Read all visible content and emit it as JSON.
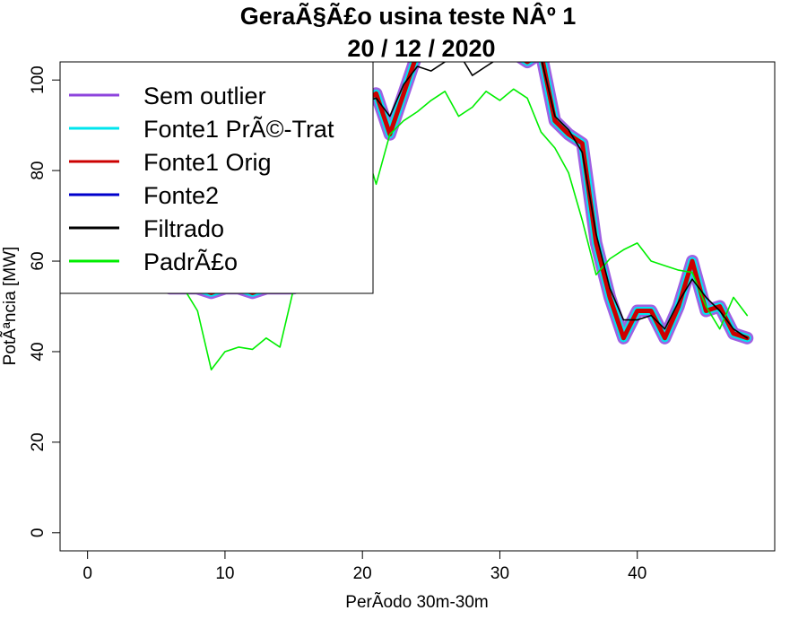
{
  "chart_data": {
    "type": "line",
    "title_line1": "GeraÃ§Ã£o usina teste NÂº 1",
    "title_line2": "20 / 12 / 2020",
    "xlabel": "PerÃ­odo 30m-30m",
    "ylabel": "PotÃªncia [MW]",
    "xlim": [
      -2,
      50
    ],
    "ylim": [
      -4,
      104
    ],
    "xticks": [
      0,
      10,
      20,
      30,
      40
    ],
    "yticks": [
      0,
      20,
      40,
      60,
      80,
      100
    ],
    "legend_position": "top-left",
    "series": [
      {
        "name": "Sem outlier",
        "color": "#8e44dd",
        "x": [
          6,
          7,
          8,
          9,
          10,
          11,
          12,
          13,
          14,
          15,
          16,
          17,
          18,
          19,
          20,
          21,
          22,
          23,
          24,
          25,
          26,
          27,
          28,
          29,
          30,
          31,
          32,
          33,
          34,
          35,
          36,
          37,
          38,
          39,
          40,
          41,
          42,
          43,
          44,
          45,
          46,
          47,
          48
        ],
        "y": [
          54,
          54,
          54,
          53,
          54,
          54,
          53,
          54,
          54,
          54,
          62,
          72,
          80,
          90,
          95,
          97,
          88,
          97,
          106,
          106,
          106,
          106,
          106,
          106,
          106,
          106,
          104,
          106,
          91,
          88,
          86,
          64,
          52,
          43,
          49,
          49,
          43,
          50,
          60,
          49,
          50,
          44,
          43
        ]
      },
      {
        "name": "Fonte1 PrÃ©-Trat",
        "color": "#00e5ee",
        "x": [
          6,
          7,
          8,
          9,
          10,
          11,
          12,
          13,
          14,
          15,
          16,
          17,
          18,
          19,
          20,
          21,
          22,
          23,
          24,
          25,
          26,
          27,
          28,
          29,
          30,
          31,
          32,
          33,
          34,
          35,
          36,
          37,
          38,
          39,
          40,
          41,
          42,
          43,
          44,
          45,
          46,
          47,
          48
        ],
        "y": [
          54,
          54,
          54,
          53,
          54,
          54,
          53,
          54,
          54,
          54,
          62,
          72,
          80,
          90,
          95,
          97,
          88,
          97,
          106,
          106,
          106,
          106,
          106,
          106,
          106,
          106,
          104,
          106,
          91,
          88,
          86,
          64,
          52,
          43,
          49,
          49,
          43,
          50,
          60,
          49,
          50,
          44,
          43
        ]
      },
      {
        "name": "Fonte1 Orig",
        "color": "#cc0000",
        "x": [
          6,
          7,
          8,
          9,
          10,
          11,
          12,
          13,
          14,
          15,
          16,
          17,
          18,
          19,
          20,
          21,
          22,
          23,
          24,
          25,
          26,
          27,
          28,
          29,
          30,
          31,
          32,
          33,
          34,
          35,
          36,
          37,
          38,
          39,
          40,
          41,
          42,
          43,
          44,
          45,
          46,
          47,
          48
        ],
        "y": [
          54,
          54,
          54,
          53,
          54,
          54,
          53,
          54,
          54,
          54,
          62,
          72,
          80,
          90,
          95,
          97,
          88,
          97,
          106,
          106,
          106,
          106,
          106,
          106,
          106,
          106,
          104,
          106,
          91,
          88,
          86,
          64,
          52,
          43,
          49,
          49,
          43,
          50,
          60,
          49,
          50,
          44,
          43
        ]
      },
      {
        "name": "Fonte2",
        "color": "#0000cc",
        "x": [
          6,
          7,
          8,
          9,
          10,
          11,
          12,
          13,
          14,
          15,
          16,
          17,
          18,
          19,
          20,
          21,
          22,
          23,
          24,
          25,
          26,
          27,
          28,
          29,
          30,
          31,
          32,
          33,
          34,
          35,
          36,
          37,
          38,
          39,
          40,
          41,
          42,
          43,
          44,
          45,
          46,
          47,
          48
        ],
        "y": [
          54,
          54,
          54,
          53,
          54,
          54,
          53,
          54,
          54,
          54,
          62,
          72,
          80,
          90,
          95,
          97,
          88,
          97,
          106,
          106,
          106,
          106,
          106,
          106,
          106,
          106,
          104,
          106,
          91,
          88,
          86,
          64,
          52,
          43,
          49,
          49,
          43,
          50,
          60,
          49,
          50,
          44,
          43
        ]
      },
      {
        "name": "Filtrado",
        "color": "#000000",
        "x": [
          6,
          7,
          8,
          9,
          10,
          11,
          12,
          13,
          14,
          15,
          16,
          17,
          18,
          19,
          20,
          21,
          22,
          23,
          24,
          25,
          26,
          27,
          28,
          29,
          30,
          31,
          32,
          33,
          34,
          35,
          36,
          37,
          38,
          39,
          40,
          41,
          42,
          43,
          44,
          45,
          46,
          47,
          48
        ],
        "y": [
          54,
          54,
          54,
          54,
          54,
          54,
          54,
          54,
          54,
          54,
          62,
          72,
          80,
          90,
          95,
          96,
          92,
          99,
          103,
          102,
          104,
          106,
          101,
          103,
          105,
          106,
          106,
          105,
          92,
          89,
          84,
          66,
          54,
          47,
          47,
          48,
          45,
          51,
          56,
          52,
          49,
          45,
          43
        ]
      },
      {
        "name": "PadrÃ£o",
        "color": "#00ee00",
        "x": [
          6,
          7,
          8,
          9,
          10,
          11,
          12,
          13,
          14,
          15,
          16,
          17,
          18,
          19,
          20,
          21,
          22,
          23,
          24,
          25,
          26,
          27,
          28,
          29,
          30,
          31,
          32,
          33,
          34,
          35,
          36,
          37,
          38,
          39,
          40,
          41,
          42,
          43,
          44,
          45,
          46,
          47,
          48
        ],
        "y": [
          54,
          54,
          49,
          36,
          40,
          41,
          40.5,
          43,
          41,
          54,
          66,
          74,
          79,
          84,
          87,
          77,
          88,
          91,
          93,
          95.5,
          97.5,
          92,
          94,
          97.5,
          95.5,
          98,
          96,
          88.5,
          85,
          79.5,
          69,
          57,
          60.5,
          62.5,
          64,
          60,
          59,
          58,
          57.5,
          50,
          45,
          52,
          48
        ]
      }
    ]
  }
}
